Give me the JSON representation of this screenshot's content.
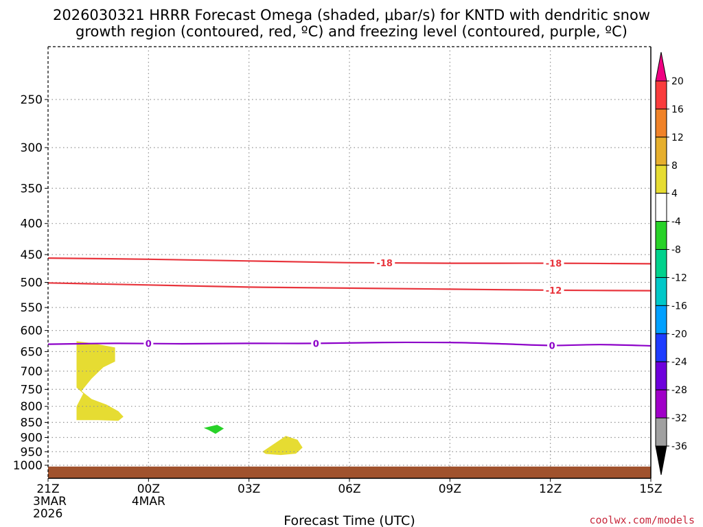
{
  "chart_data": {
    "type": "time-height-contour",
    "title_line1": "2026030321 HRRR Forecast Omega (shaded, μbar/s) for KNTD with dendritic snow",
    "title_line2": "growth region (contoured, red, ºC) and freezing level (contoured, purple, ºC)",
    "xlabel": "Forecast Time (UTC)",
    "credit": "coolwx.com/models",
    "x_range_hours": [
      0,
      18
    ],
    "x_ticks": [
      {
        "hour": 0,
        "lines": [
          "21Z",
          "3MAR",
          "2026"
        ]
      },
      {
        "hour": 3,
        "lines": [
          "00Z",
          "4MAR"
        ]
      },
      {
        "hour": 6,
        "lines": [
          "03Z"
        ]
      },
      {
        "hour": 9,
        "lines": [
          "06Z"
        ]
      },
      {
        "hour": 12,
        "lines": [
          "09Z"
        ]
      },
      {
        "hour": 15,
        "lines": [
          "12Z"
        ]
      },
      {
        "hour": 18,
        "lines": [
          "15Z"
        ]
      }
    ],
    "y_axis": "pressure (hPa, log scale)",
    "y_ticks": [
      250,
      300,
      350,
      400,
      450,
      500,
      550,
      600,
      650,
      700,
      750,
      800,
      850,
      900,
      950,
      1000
    ],
    "y_range_hpa": [
      200,
      1030
    ],
    "surface_hpa": 1005,
    "contours": [
      {
        "name": "-18",
        "color": "#e8343c",
        "label_style": "red",
        "labels": [
          {
            "hour": 10.05,
            "text": "-18"
          },
          {
            "hour": 15.1,
            "text": "-18"
          }
        ],
        "points": [
          [
            0,
            456
          ],
          [
            3,
            458
          ],
          [
            6,
            461
          ],
          [
            9,
            464
          ],
          [
            12,
            465
          ],
          [
            15,
            465
          ],
          [
            18,
            466
          ]
        ]
      },
      {
        "name": "-12",
        "color": "#e8343c",
        "label_style": "red",
        "labels": [
          {
            "hour": 15.1,
            "text": "-12"
          }
        ],
        "points": [
          [
            0,
            501
          ],
          [
            3,
            505
          ],
          [
            6,
            509
          ],
          [
            9,
            511
          ],
          [
            12,
            513
          ],
          [
            15,
            515
          ],
          [
            18,
            516
          ]
        ]
      },
      {
        "name": "0",
        "color": "#8c00c8",
        "label_style": "purple",
        "labels": [
          {
            "hour": 3.0,
            "text": "0"
          },
          {
            "hour": 8.0,
            "text": "0"
          },
          {
            "hour": 15.05,
            "text": "0"
          }
        ],
        "points": [
          [
            0,
            632
          ],
          [
            2,
            630
          ],
          [
            4,
            631
          ],
          [
            6,
            630
          ],
          [
            8,
            630
          ],
          [
            10,
            628
          ],
          [
            12,
            628
          ],
          [
            13.5,
            631
          ],
          [
            15,
            635
          ],
          [
            16.5,
            633
          ],
          [
            18,
            636
          ]
        ]
      }
    ],
    "omega_shaded_regions": [
      {
        "name": "omega-upward-4to8-a",
        "color": "#e6dc32",
        "range": "4 to 8",
        "points": [
          [
            0.85,
            625
          ],
          [
            1.35,
            630
          ],
          [
            2.0,
            640
          ],
          [
            2.0,
            675
          ],
          [
            1.65,
            690
          ],
          [
            1.3,
            720
          ],
          [
            1.0,
            755
          ],
          [
            1.3,
            778
          ],
          [
            1.75,
            795
          ],
          [
            2.1,
            815
          ],
          [
            2.25,
            832
          ],
          [
            2.1,
            845
          ],
          [
            1.5,
            843
          ],
          [
            0.85,
            843
          ],
          [
            0.85,
            800
          ],
          [
            1.05,
            762
          ],
          [
            0.85,
            745
          ],
          [
            0.85,
            690
          ]
        ]
      },
      {
        "name": "omega-upward-4to8-b",
        "color": "#e6dc32",
        "range": "4 to 8",
        "points": [
          [
            6.4,
            950
          ],
          [
            6.8,
            918
          ],
          [
            7.1,
            895
          ],
          [
            7.45,
            908
          ],
          [
            7.6,
            935
          ],
          [
            7.4,
            957
          ],
          [
            6.95,
            962
          ],
          [
            6.5,
            958
          ]
        ]
      },
      {
        "name": "omega-downward-neg4to-8",
        "color": "#28d228",
        "range": "-8 to -4",
        "points": [
          [
            4.65,
            868
          ],
          [
            5.05,
            858
          ],
          [
            5.25,
            870
          ],
          [
            5.0,
            888
          ],
          [
            4.8,
            875
          ]
        ]
      }
    ],
    "colorbar": {
      "unit": "μbar/s",
      "bins": [
        {
          "color": "#000000",
          "low": null,
          "high": -36
        },
        {
          "color": "#a0a0a0",
          "low": -36,
          "high": -32
        },
        {
          "color": "#a000c8",
          "low": -32,
          "high": -28
        },
        {
          "color": "#6e00dc",
          "low": -28,
          "high": -24
        },
        {
          "color": "#1e3cff",
          "low": -24,
          "high": -20
        },
        {
          "color": "#00a0ff",
          "low": -20,
          "high": -16
        },
        {
          "color": "#00c8c8",
          "low": -16,
          "high": -12
        },
        {
          "color": "#00d28c",
          "low": -12,
          "high": -8
        },
        {
          "color": "#28d228",
          "low": -8,
          "high": -4
        },
        {
          "color": "#ffffff",
          "low": -4,
          "high": 4
        },
        {
          "color": "#e6dc32",
          "low": 4,
          "high": 8
        },
        {
          "color": "#e6af2d",
          "low": 8,
          "high": 12
        },
        {
          "color": "#f08228",
          "low": 12,
          "high": 16
        },
        {
          "color": "#fa3c3c",
          "low": 16,
          "high": 20
        },
        {
          "color": "#f00082",
          "low": 20,
          "high": null
        }
      ],
      "tick_labels": [
        "-36",
        "-32",
        "-28",
        "-24",
        "-20",
        "-16",
        "-12",
        "-8",
        "-4",
        "4",
        "8",
        "12",
        "16",
        "20"
      ]
    },
    "terrain_color": "#a0522d",
    "grid": "dotted"
  }
}
